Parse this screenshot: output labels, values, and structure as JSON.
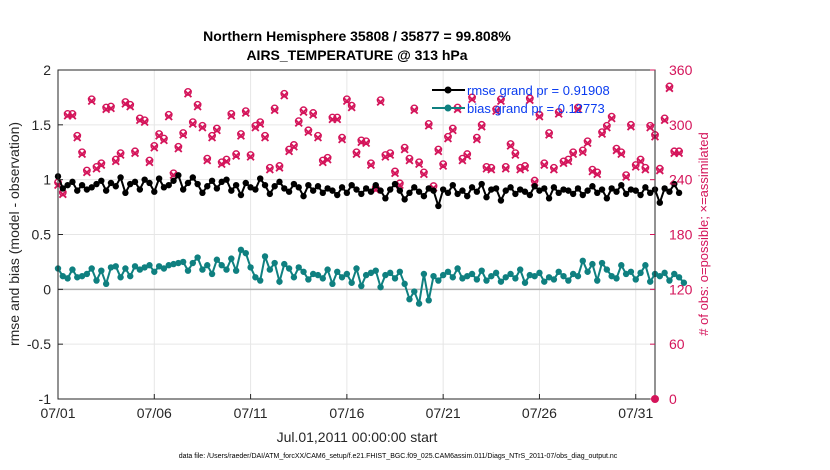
{
  "chart_data": {
    "type": "line",
    "title": [
      "Northern Hemisphere 35808 / 35877 = 99.808%",
      "AIRS_TEMPERATURE @ 313 hPa"
    ],
    "xlabel": "Jul.01,2011 00:00:00 start",
    "ylabel": "rmse and bias (model - observation)",
    "ylabel_right": "# of obs: o=possible; ×=assimilated",
    "xlim": [
      0,
      31
    ],
    "ylim": [
      -1,
      2
    ],
    "ylim_right": [
      0,
      360
    ],
    "x_ticks": [
      0,
      5,
      10,
      15,
      20,
      25,
      30
    ],
    "x_tick_labels": [
      "07/01",
      "07/06",
      "07/11",
      "07/16",
      "07/21",
      "07/26",
      "07/31"
    ],
    "y_ticks": [
      -1,
      -0.5,
      0,
      0.5,
      1,
      1.5,
      2
    ],
    "y_tick_labels": [
      "-1",
      "-0.5",
      "0",
      "0.5",
      "1",
      "1.5",
      "2"
    ],
    "y_ticks_right": [
      0,
      60,
      120,
      180,
      240,
      300,
      360
    ],
    "y_tick_labels_right": [
      "0",
      "60",
      "120",
      "180",
      "240",
      "300",
      "360"
    ],
    "grid": true,
    "legend": [
      "rmse grand pr = 0.91908",
      "bias grand pr = 0.12773"
    ],
    "legend_placement": "top-right",
    "footnote": "data file: /Users/raeder/DAI/ATM_forcXX/CAM6_setup/f.e21.FHIST_BGC.f09_025.CAM6assim.011/Diags_NTrS_2011-07/obs_diag_output.nc",
    "colors": {
      "rmse": "#000000",
      "bias": "#0f8080",
      "counts": "#d4145a",
      "zero_line": "#b0b0b0",
      "legend_text": "#0a3cf0"
    },
    "x_step_days": 0.25,
    "series": [
      {
        "name": "rmse",
        "values": [
          1.03,
          0.92,
          0.95,
          0.98,
          0.9,
          0.95,
          0.91,
          0.93,
          0.96,
          0.99,
          0.9,
          0.97,
          0.94,
          1.02,
          0.88,
          0.96,
          0.98,
          0.91,
          1.0,
          0.97,
          0.89,
          1.01,
          0.93,
          0.95,
          0.99,
          1.04,
          0.91,
          0.97,
          1.02,
          0.96,
          0.88,
          0.94,
          0.99,
          0.92,
          0.98,
          1.0,
          0.9,
          0.95,
          0.86,
          0.97,
          0.93,
          0.91,
          1.01,
          0.95,
          0.87,
          0.94,
          0.98,
          0.92,
          0.89,
          0.96,
          0.93,
          0.85,
          0.95,
          0.9,
          0.94,
          0.88,
          0.92,
          0.9,
          0.86,
          0.93,
          0.88,
          0.95,
          0.91,
          0.87,
          0.92,
          0.89,
          0.95,
          0.9,
          0.83,
          0.91,
          0.96,
          0.9,
          0.82,
          0.88,
          0.93,
          0.89,
          0.85,
          0.92,
          0.9,
          0.76,
          0.91,
          0.88,
          0.95,
          0.87,
          0.9,
          0.85,
          0.93,
          0.89,
          0.96,
          0.84,
          0.91,
          0.92,
          0.81,
          0.9,
          0.93,
          0.87,
          0.91,
          0.89,
          0.86,
          0.94,
          0.9,
          0.92,
          0.83,
          0.93,
          0.88,
          0.91,
          0.9,
          0.87,
          0.92,
          0.86,
          0.9,
          0.94,
          0.88,
          0.91,
          0.83,
          0.92,
          0.89,
          0.95,
          0.87,
          0.91,
          0.9,
          0.86,
          0.93,
          0.88,
          0.91,
          0.79,
          0.92,
          0.89,
          0.96,
          0.88
        ],
        "marker": "filled-circle"
      },
      {
        "name": "bias",
        "values": [
          0.19,
          0.12,
          0.1,
          0.18,
          0.11,
          0.12,
          0.14,
          0.19,
          0.08,
          0.17,
          0.05,
          0.2,
          0.21,
          0.11,
          0.19,
          0.12,
          0.21,
          0.18,
          0.2,
          0.22,
          0.16,
          0.21,
          0.19,
          0.22,
          0.23,
          0.24,
          0.25,
          0.17,
          0.24,
          0.29,
          0.18,
          0.22,
          0.14,
          0.27,
          0.22,
          0.18,
          0.28,
          0.17,
          0.36,
          0.33,
          0.2,
          0.11,
          0.08,
          0.3,
          0.18,
          0.24,
          0.07,
          0.23,
          0.19,
          0.11,
          0.2,
          0.16,
          0.09,
          0.14,
          0.13,
          0.1,
          0.18,
          0.05,
          0.16,
          0.11,
          0.14,
          0.06,
          0.19,
          0.03,
          0.13,
          0.15,
          0.17,
          0.02,
          0.13,
          0.15,
          0.1,
          0.16,
          0.05,
          -0.09,
          -0.02,
          -0.13,
          0.14,
          -0.1,
          0.12,
          0.08,
          0.13,
          0.16,
          0.11,
          0.19,
          0.1,
          0.12,
          0.14,
          0.09,
          0.17,
          0.08,
          0.12,
          0.15,
          0.07,
          0.11,
          0.14,
          0.1,
          0.18,
          0.06,
          0.13,
          0.12,
          0.15,
          0.07,
          0.11,
          0.09,
          0.16,
          0.12,
          0.08,
          0.14,
          0.12,
          0.26,
          0.16,
          0.23,
          0.08,
          0.24,
          0.18,
          0.12,
          0.1,
          0.22,
          0.14,
          0.16,
          0.09,
          0.15,
          0.22,
          0.07,
          0.14,
          0.12,
          0.15,
          0.08,
          0.14,
          0.11,
          0.06
        ],
        "marker": "filled-circle"
      },
      {
        "name": "obs_possible",
        "axis": "right",
        "values": [
          237,
          226,
          312,
          312,
          288,
          270,
          250,
          328,
          254,
          258,
          319,
          320,
          262,
          269,
          325,
          322,
          271,
          307,
          305,
          261,
          277,
          290,
          285,
          311,
          247,
          276,
          291,
          336,
          303,
          322,
          299,
          263,
          288,
          296,
          259,
          262,
          312,
          268,
          290,
          315,
          267,
          299,
          303,
          288,
          253,
          318,
          255,
          334,
          273,
          278,
          304,
          316,
          294,
          313,
          288,
          261,
          264,
          308,
          308,
          286,
          328,
          321,
          270,
          283,
          282,
          258,
          231,
          327,
          267,
          269,
          249,
          236,
          275,
          263,
          318,
          259,
          248,
          301,
          233,
          273,
          257,
          287,
          296,
          319,
          263,
          268,
          330,
          286,
          300,
          254,
          253,
          317,
          328,
          254,
          279,
          269,
          253,
          255,
          329,
          239,
          311,
          258,
          291,
          253,
          314,
          260,
          262,
          270,
          319,
          272,
          282,
          251,
          248,
          292,
          299,
          309,
          274,
          270,
          245,
          300,
          256,
          262,
          253,
          299,
          289,
          252,
          307,
          342,
          271,
          271
        ],
        "marker": "circle"
      },
      {
        "name": "obs_assimilated",
        "axis": "right",
        "values": [
          234,
          224,
          310,
          310,
          286,
          268,
          248,
          326,
          252,
          256,
          317,
          318,
          260,
          267,
          323,
          320,
          269,
          305,
          303,
          259,
          275,
          288,
          283,
          309,
          245,
          274,
          289,
          334,
          301,
          320,
          297,
          261,
          286,
          294,
          257,
          260,
          310,
          266,
          288,
          313,
          265,
          297,
          301,
          286,
          251,
          316,
          253,
          332,
          271,
          276,
          302,
          314,
          292,
          311,
          286,
          259,
          262,
          306,
          306,
          284,
          326,
          319,
          268,
          281,
          280,
          256,
          229,
          325,
          265,
          267,
          247,
          234,
          273,
          261,
          316,
          257,
          246,
          299,
          231,
          271,
          255,
          285,
          294,
          317,
          261,
          266,
          328,
          284,
          298,
          252,
          251,
          315,
          326,
          252,
          277,
          267,
          251,
          253,
          327,
          237,
          309,
          256,
          289,
          251,
          312,
          258,
          260,
          268,
          317,
          270,
          280,
          249,
          246,
          290,
          297,
          307,
          272,
          268,
          243,
          298,
          254,
          260,
          251,
          297,
          287,
          250,
          305,
          340,
          269,
          269
        ],
        "marker": "x"
      }
    ]
  }
}
